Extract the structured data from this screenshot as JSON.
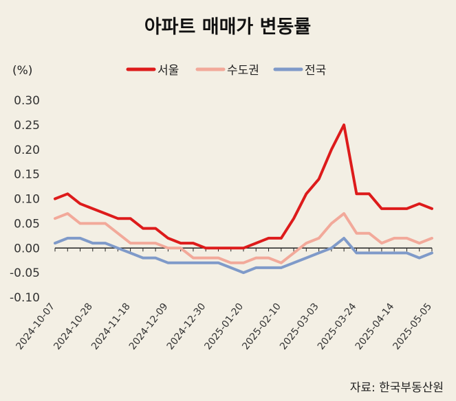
{
  "chart_data": {
    "type": "line",
    "title": "아파트 매매가 변동률",
    "unit_label": "(%)",
    "source": "자료: 한국부동산원",
    "ylim": [
      -0.1,
      0.3
    ],
    "yticks": [
      "0.30",
      "0.25",
      "0.20",
      "0.15",
      "0.10",
      "0.05",
      "0.00",
      "-0.05",
      "-0.10"
    ],
    "ytick_values": [
      0.3,
      0.25,
      0.2,
      0.15,
      0.1,
      0.05,
      0.0,
      -0.05,
      -0.1
    ],
    "x": [
      "2024-10-07",
      "2024-10-14",
      "2024-10-21",
      "2024-10-28",
      "2024-11-04",
      "2024-11-11",
      "2024-11-18",
      "2024-11-25",
      "2024-12-02",
      "2024-12-09",
      "2024-12-16",
      "2024-12-23",
      "2024-12-30",
      "2025-01-06",
      "2025-01-13",
      "2025-01-20",
      "2025-01-27",
      "2025-02-03",
      "2025-02-10",
      "2025-02-17",
      "2025-02-24",
      "2025-03-03",
      "2025-03-10",
      "2025-03-17",
      "2025-03-24",
      "2025-03-31",
      "2025-04-07",
      "2025-04-14",
      "2025-04-21",
      "2025-04-28",
      "2025-05-05"
    ],
    "xtick_labels": [
      "2024-10-07",
      "2024-10-28",
      "2024-11-18",
      "2024-12-09",
      "2024-12-30",
      "2025-01-20",
      "2025-02-10",
      "2025-03-03",
      "2025-03-24",
      "2025-04-14",
      "2025-05-05"
    ],
    "xtick_indices": [
      0,
      3,
      6,
      9,
      12,
      15,
      18,
      21,
      24,
      27,
      30
    ],
    "series": [
      {
        "name": "서울",
        "color": "#dd1b1b",
        "values": [
          0.1,
          0.11,
          0.09,
          0.08,
          0.07,
          0.06,
          0.06,
          0.04,
          0.04,
          0.02,
          0.01,
          0.01,
          0.0,
          0.0,
          0.0,
          0.0,
          0.01,
          0.02,
          0.02,
          0.06,
          0.11,
          0.14,
          0.2,
          0.25,
          0.11,
          0.11,
          0.08,
          0.08,
          0.08,
          0.09,
          0.08
        ]
      },
      {
        "name": "수도권",
        "color": "#f2a99a",
        "values": [
          0.06,
          0.07,
          0.05,
          0.05,
          0.05,
          0.03,
          0.01,
          0.01,
          0.01,
          0.0,
          0.0,
          -0.02,
          -0.02,
          -0.02,
          -0.03,
          -0.03,
          -0.02,
          -0.02,
          -0.03,
          -0.01,
          0.01,
          0.02,
          0.05,
          0.07,
          0.03,
          0.03,
          0.01,
          0.02,
          0.02,
          0.01,
          0.02
        ]
      },
      {
        "name": "전국",
        "color": "#7f9ac9",
        "values": [
          0.01,
          0.02,
          0.02,
          0.01,
          0.01,
          0.0,
          -0.01,
          -0.02,
          -0.02,
          -0.03,
          -0.03,
          -0.03,
          -0.03,
          -0.03,
          -0.04,
          -0.05,
          -0.04,
          -0.04,
          -0.04,
          -0.03,
          -0.02,
          -0.01,
          0.0,
          0.02,
          -0.01,
          -0.01,
          -0.01,
          -0.01,
          -0.01,
          -0.02,
          -0.01
        ]
      }
    ],
    "legend_position": "top"
  }
}
